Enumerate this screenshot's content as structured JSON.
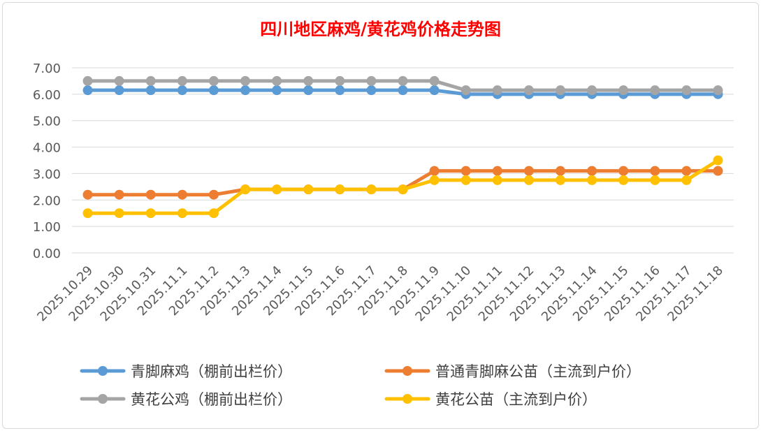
{
  "chart_data": {
    "type": "line",
    "title": "四川地区麻鸡/黄花鸡价格走势图",
    "categories": [
      "2025.10.29",
      "2025.10.30",
      "2025.10.31",
      "2025.11.1",
      "2025.11.2",
      "2025.11.3",
      "2025.11.4",
      "2025.11.5",
      "2025.11.6",
      "2025.11.7",
      "2025.11.8",
      "2025.11.9",
      "2025.11.10",
      "2025.11.11",
      "2025.11.12",
      "2025.11.13",
      "2025.11.14",
      "2025.11.15",
      "2025.11.16",
      "2025.11.17",
      "2025.11.18"
    ],
    "yticks": [
      "0.00",
      "1.00",
      "2.00",
      "3.00",
      "4.00",
      "5.00",
      "6.00",
      "7.00"
    ],
    "ylim": [
      0,
      7
    ],
    "grid": true,
    "legend_position": "bottom",
    "series": [
      {
        "name": "青脚麻鸡（棚前出栏价）",
        "color": "#5b9bd5",
        "values": [
          6.15,
          6.15,
          6.15,
          6.15,
          6.15,
          6.15,
          6.15,
          6.15,
          6.15,
          6.15,
          6.15,
          6.15,
          6.0,
          6.0,
          6.0,
          6.0,
          6.0,
          6.0,
          6.0,
          6.0,
          6.0
        ]
      },
      {
        "name": "普通青脚麻公苗（主流到户价）",
        "color": "#ed7d31",
        "values": [
          2.2,
          2.2,
          2.2,
          2.2,
          2.2,
          2.4,
          2.4,
          2.4,
          2.4,
          2.4,
          2.4,
          3.1,
          3.1,
          3.1,
          3.1,
          3.1,
          3.1,
          3.1,
          3.1,
          3.1,
          3.1
        ]
      },
      {
        "name": "黄花公鸡（棚前出栏价）",
        "color": "#a5a5a5",
        "values": [
          6.5,
          6.5,
          6.5,
          6.5,
          6.5,
          6.5,
          6.5,
          6.5,
          6.5,
          6.5,
          6.5,
          6.5,
          6.15,
          6.15,
          6.15,
          6.15,
          6.15,
          6.15,
          6.15,
          6.15,
          6.15
        ]
      },
      {
        "name": "黄花公苗（主流到户价）",
        "color": "#ffc000",
        "values": [
          1.5,
          1.5,
          1.5,
          1.5,
          1.5,
          2.4,
          2.4,
          2.4,
          2.4,
          2.4,
          2.4,
          2.75,
          2.75,
          2.75,
          2.75,
          2.75,
          2.75,
          2.75,
          2.75,
          2.75,
          3.5
        ]
      }
    ]
  }
}
